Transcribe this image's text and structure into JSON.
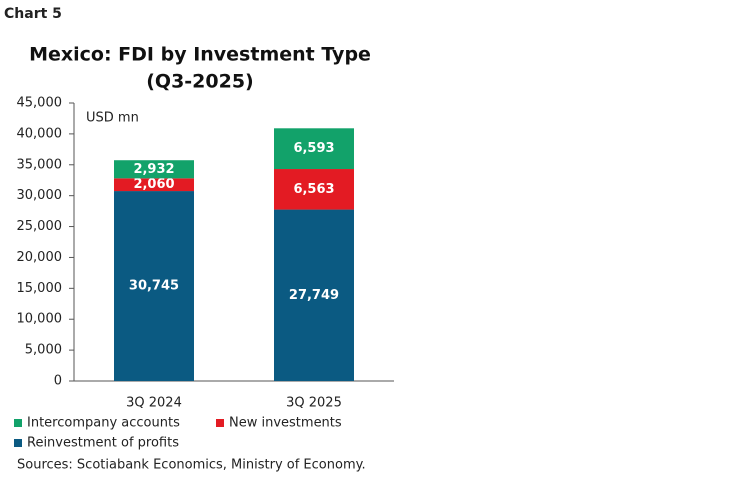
{
  "chart_label": "Chart 5",
  "chart_data": {
    "type": "stacked_bar",
    "title": "Mexico: FDI by Investment Type",
    "subtitle": "(Q3-2025)",
    "y_label": "USD mn",
    "categories": [
      "3Q 2024",
      "3Q 2025"
    ],
    "series": [
      {
        "name": "Reinvestment of profits",
        "color": "#0b5a82",
        "values": [
          30745,
          27749
        ],
        "value_labels": [
          "30,745",
          "27,749"
        ]
      },
      {
        "name": "New investments",
        "color": "#e31b23",
        "values": [
          2060,
          6563
        ],
        "value_labels": [
          "2,060",
          "6,563"
        ]
      },
      {
        "name": "Intercompany accounts",
        "color": "#12a26a",
        "values": [
          2932,
          6593
        ],
        "value_labels": [
          "2,932",
          "6,593"
        ]
      }
    ],
    "ylim": [
      0,
      45000
    ],
    "yticks": [
      0,
      {
        "value": 5000,
        "label": "5,000"
      },
      {
        "value": 10000,
        "label": "10,000"
      },
      {
        "value": 15000,
        "label": "15,000"
      },
      {
        "value": 20000,
        "label": "20,000"
      },
      {
        "value": 25000,
        "label": "25,000"
      },
      {
        "value": 30000,
        "label": "30,000"
      },
      {
        "value": 35000,
        "label": "35,000"
      },
      {
        "value": 40000,
        "label": "40,000"
      },
      {
        "value": 45000,
        "label": "45,000"
      }
    ],
    "grid": false,
    "source": "Sources: Scotiabank Economics, Ministry of Economy."
  }
}
